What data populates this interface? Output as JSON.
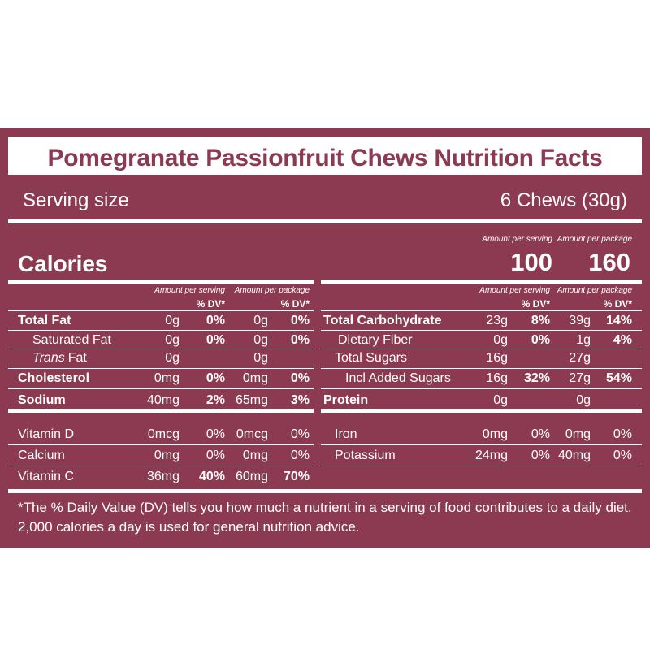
{
  "title": "Pomegranate Passionfruit Chews Nutrition Facts",
  "serving": {
    "label": "Serving size",
    "value": "6 Chews (30g)"
  },
  "column_headers": {
    "per_serving": "Amount per serving",
    "per_package": "Amount per package",
    "dv": "% DV*"
  },
  "calories": {
    "label": "Calories",
    "per_serving": 100,
    "per_package": 160
  },
  "left_rows": [
    {
      "name": "Total Fat",
      "serving": "0g",
      "serving_dv": "0%",
      "package": "0g",
      "package_dv": "0%"
    },
    {
      "name": "Saturated Fat",
      "serving": "0g",
      "serving_dv": "0%",
      "package": "0g",
      "package_dv": "0%"
    },
    {
      "name_italic": "Trans",
      "name": "Fat",
      "serving": "0g",
      "package": "0g"
    },
    {
      "name": "Cholesterol",
      "serving": "0mg",
      "serving_dv": "0%",
      "package": "0mg",
      "package_dv": "0%"
    },
    {
      "name": "Sodium",
      "serving": "40mg",
      "serving_dv": "2%",
      "package": "65mg",
      "package_dv": "3%"
    }
  ],
  "right_rows": [
    {
      "name": "Total Carbohydrate",
      "serving": "23g",
      "serving_dv": "8%",
      "package": "39g",
      "package_dv": "14%"
    },
    {
      "name": "Dietary Fiber",
      "serving": "0g",
      "serving_dv": "0%",
      "package": "1g",
      "package_dv": "4%"
    },
    {
      "name": "Total Sugars",
      "serving": "16g",
      "package": "27g"
    },
    {
      "name": "Incl Added Sugars",
      "serving": "16g",
      "serving_dv": "32%",
      "package": "27g",
      "package_dv": "54%"
    },
    {
      "name": "Protein",
      "serving": "0g",
      "package": "0g"
    }
  ],
  "vitamins_left": [
    {
      "name": "Vitamin D",
      "serving": "0mcg",
      "serving_dv": "0%",
      "package": "0mcg",
      "package_dv": "0%"
    },
    {
      "name": "Calcium",
      "serving": "0mg",
      "serving_dv": "0%",
      "package": "0mg",
      "package_dv": "0%"
    },
    {
      "name": "Vitamin C",
      "serving": "36mg",
      "serving_dv": "40%",
      "package": "60mg",
      "package_dv": "70%"
    }
  ],
  "vitamins_right": [
    {
      "name": "Iron",
      "serving": "0mg",
      "serving_dv": "0%",
      "package": "0mg",
      "package_dv": "0%"
    },
    {
      "name": "Potassium",
      "serving": "24mg",
      "serving_dv": "0%",
      "package": "40mg",
      "package_dv": "0%"
    }
  ],
  "footnote": "*The % Daily Value (DV) tells you how much a nutrient in a serving of food contributes to a daily diet. 2,000 calories a day is used for general nutrition advice."
}
